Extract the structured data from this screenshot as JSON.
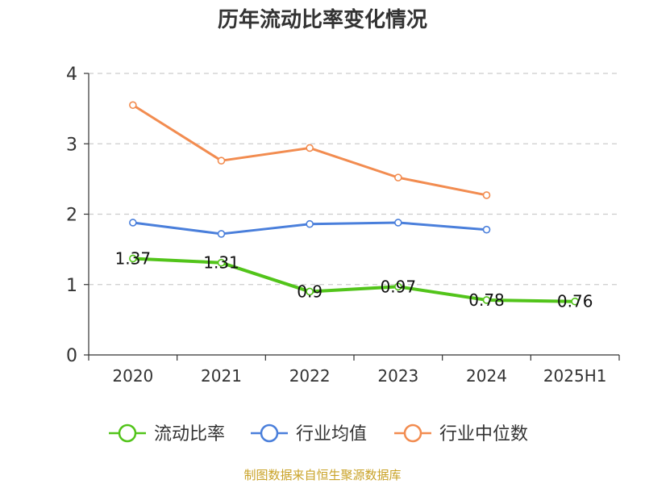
{
  "chart_data": {
    "type": "line",
    "title": "历年流动比率变化情况",
    "categories": [
      "2020",
      "2021",
      "2022",
      "2023",
      "2024",
      "2025H1"
    ],
    "ylim": [
      0,
      4
    ],
    "yticks": [
      "0",
      "1",
      "2",
      "3",
      "4"
    ],
    "grid": true,
    "legend_position": "bottom",
    "series": [
      {
        "name": "流动比率",
        "color": "#52c41a",
        "values": [
          1.37,
          1.31,
          0.9,
          0.97,
          0.78,
          0.76
        ],
        "labels": [
          "1.37",
          "1.31",
          "0.9",
          "0.97",
          "0.78",
          "0.76"
        ]
      },
      {
        "name": "行业均值",
        "color": "#4a7fdb",
        "values": [
          1.88,
          1.72,
          1.86,
          1.88,
          1.78,
          null
        ]
      },
      {
        "name": "行业中位数",
        "color": "#f28c50",
        "values": [
          3.55,
          2.76,
          2.94,
          2.52,
          2.27,
          null
        ]
      }
    ]
  },
  "source": "制图数据来自恒生聚源数据库"
}
